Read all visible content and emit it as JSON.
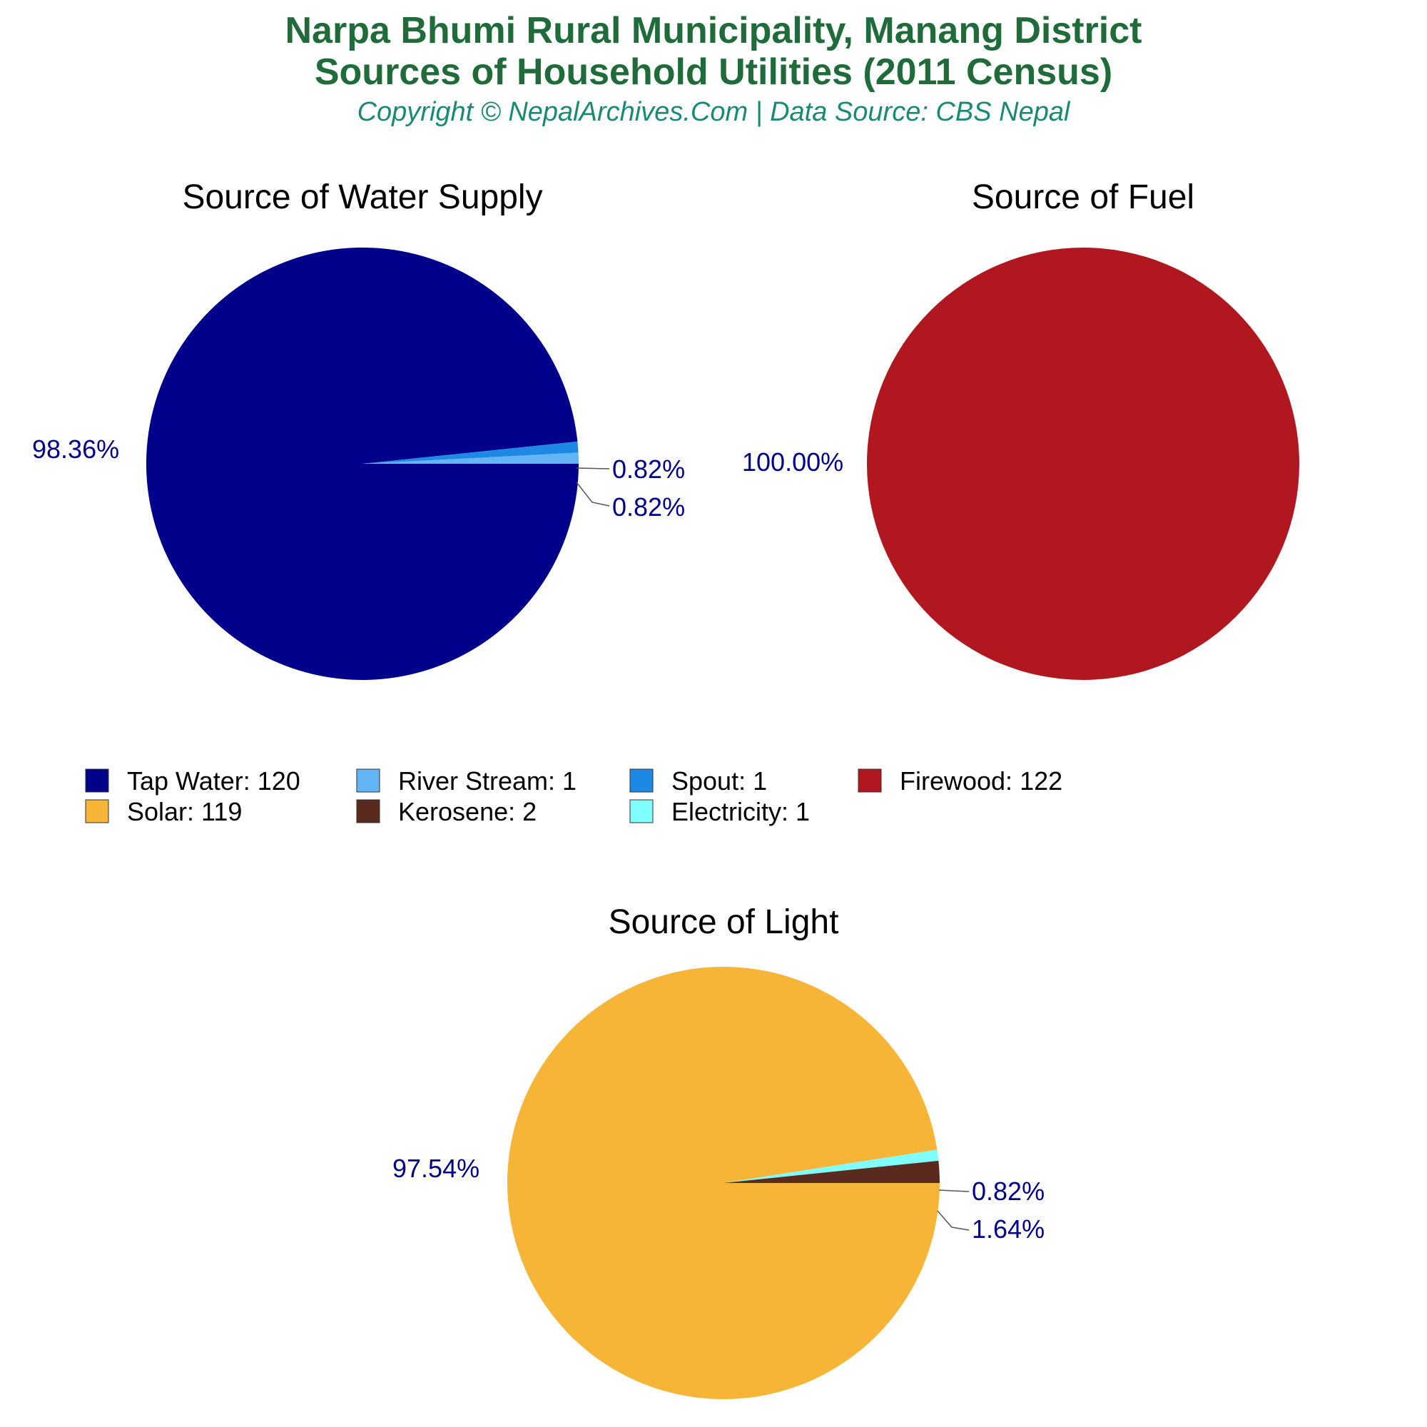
{
  "header": {
    "title_line1": "Narpa Bhumi Rural Municipality, Manang District",
    "title_line2": "Sources of Household Utilities (2011 Census)",
    "subtitle": "Copyright © NepalArchives.Com | Data Source: CBS Nepal"
  },
  "colors": {
    "title": "#1f6b3a",
    "subtitle": "#1a8a74",
    "label": "#00008b"
  },
  "chart_data": [
    {
      "type": "pie",
      "title": "Source of Water Supply",
      "start_angle_deg": 0,
      "direction": "clockwise",
      "slices": [
        {
          "label": "Tap Water",
          "value": 120,
          "pct_label": "98.36%",
          "color": "#00008b"
        },
        {
          "label": "Spout",
          "value": 1,
          "pct_label": "0.82%",
          "color": "#1e88e5"
        },
        {
          "label": "River Stream",
          "value": 1,
          "pct_label": "0.82%",
          "color": "#64b5f6"
        }
      ]
    },
    {
      "type": "pie",
      "title": "Source of Fuel",
      "start_angle_deg": 0,
      "direction": "clockwise",
      "slices": [
        {
          "label": "Firewood",
          "value": 122,
          "pct_label": "100.00%",
          "color": "#b0171f"
        }
      ]
    },
    {
      "type": "pie",
      "title": "Source of Light",
      "start_angle_deg": 0,
      "direction": "clockwise",
      "slices": [
        {
          "label": "Solar",
          "value": 119,
          "pct_label": "97.54%",
          "color": "#f6b537"
        },
        {
          "label": "Electricity",
          "value": 1,
          "pct_label": "0.82%",
          "color": "#80ffff"
        },
        {
          "label": "Kerosene",
          "value": 2,
          "pct_label": "1.64%",
          "color": "#5a2a1e"
        }
      ]
    }
  ],
  "legend": {
    "items": [
      {
        "text": "Tap Water: 120",
        "color": "#00008b"
      },
      {
        "text": "River Stream: 1",
        "color": "#64b5f6"
      },
      {
        "text": "Spout: 1",
        "color": "#1e88e5"
      },
      {
        "text": "Firewood: 122",
        "color": "#b0171f"
      },
      {
        "text": "Solar: 119",
        "color": "#f6b537"
      },
      {
        "text": "Kerosene: 2",
        "color": "#5a2a1e"
      },
      {
        "text": "Electricity: 1",
        "color": "#80ffff"
      }
    ]
  }
}
